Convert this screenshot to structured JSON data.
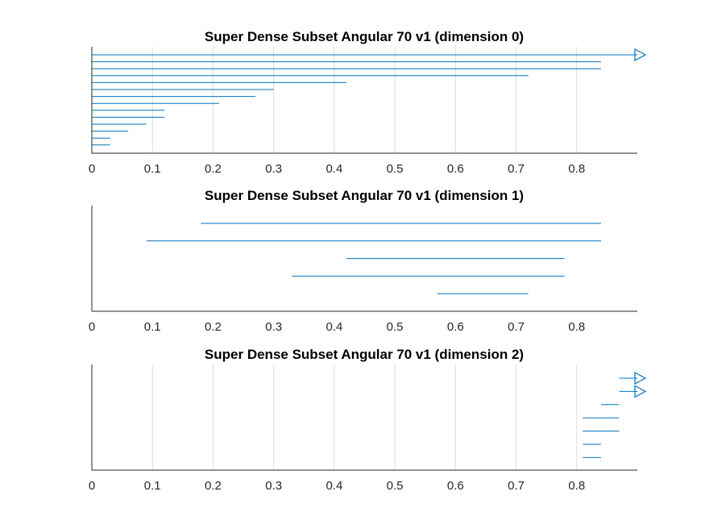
{
  "chart_data": [
    {
      "type": "interval",
      "title": "Super Dense Subset Angular 70 v1 (dimension 0)",
      "xlim": [
        0,
        0.9
      ],
      "xticks": [
        "0",
        "0.1",
        "0.2",
        "0.3",
        "0.4",
        "0.5",
        "0.6",
        "0.7",
        "0.8"
      ],
      "grid": true,
      "color": "#0072bd",
      "intervals": [
        {
          "start": 0,
          "end": 0.9,
          "unbounded": true
        },
        {
          "start": 0,
          "end": 0.84
        },
        {
          "start": 0,
          "end": 0.84
        },
        {
          "start": 0,
          "end": 0.72
        },
        {
          "start": 0,
          "end": 0.42
        },
        {
          "start": 0,
          "end": 0.3
        },
        {
          "start": 0,
          "end": 0.27
        },
        {
          "start": 0,
          "end": 0.21
        },
        {
          "start": 0,
          "end": 0.12
        },
        {
          "start": 0,
          "end": 0.12
        },
        {
          "start": 0,
          "end": 0.09
        },
        {
          "start": 0,
          "end": 0.06
        },
        {
          "start": 0,
          "end": 0.03
        },
        {
          "start": 0,
          "end": 0.03
        }
      ]
    },
    {
      "type": "interval",
      "title": "Super Dense Subset Angular 70 v1 (dimension 1)",
      "xlim": [
        0,
        0.9
      ],
      "xticks": [
        "0",
        "0.1",
        "0.2",
        "0.3",
        "0.4",
        "0.5",
        "0.6",
        "0.7",
        "0.8"
      ],
      "grid": false,
      "color": "#0072bd",
      "intervals": [
        {
          "start": 0.18,
          "end": 0.84
        },
        {
          "start": 0.09,
          "end": 0.84
        },
        {
          "start": 0.42,
          "end": 0.78
        },
        {
          "start": 0.33,
          "end": 0.78
        },
        {
          "start": 0.57,
          "end": 0.72
        }
      ]
    },
    {
      "type": "interval",
      "title": "Super Dense Subset Angular 70 v1 (dimension 2)",
      "xlim": [
        0,
        0.9
      ],
      "xticks": [
        "0",
        "0.1",
        "0.2",
        "0.3",
        "0.4",
        "0.5",
        "0.6",
        "0.7",
        "0.8"
      ],
      "grid": true,
      "color": "#0072bd",
      "intervals": [
        {
          "start": 0.87,
          "end": 0.9,
          "unbounded": true
        },
        {
          "start": 0.87,
          "end": 0.9,
          "unbounded": true
        },
        {
          "start": 0.84,
          "end": 0.87
        },
        {
          "start": 0.81,
          "end": 0.87
        },
        {
          "start": 0.81,
          "end": 0.87
        },
        {
          "start": 0.81,
          "end": 0.84
        },
        {
          "start": 0.81,
          "end": 0.84
        }
      ]
    }
  ]
}
